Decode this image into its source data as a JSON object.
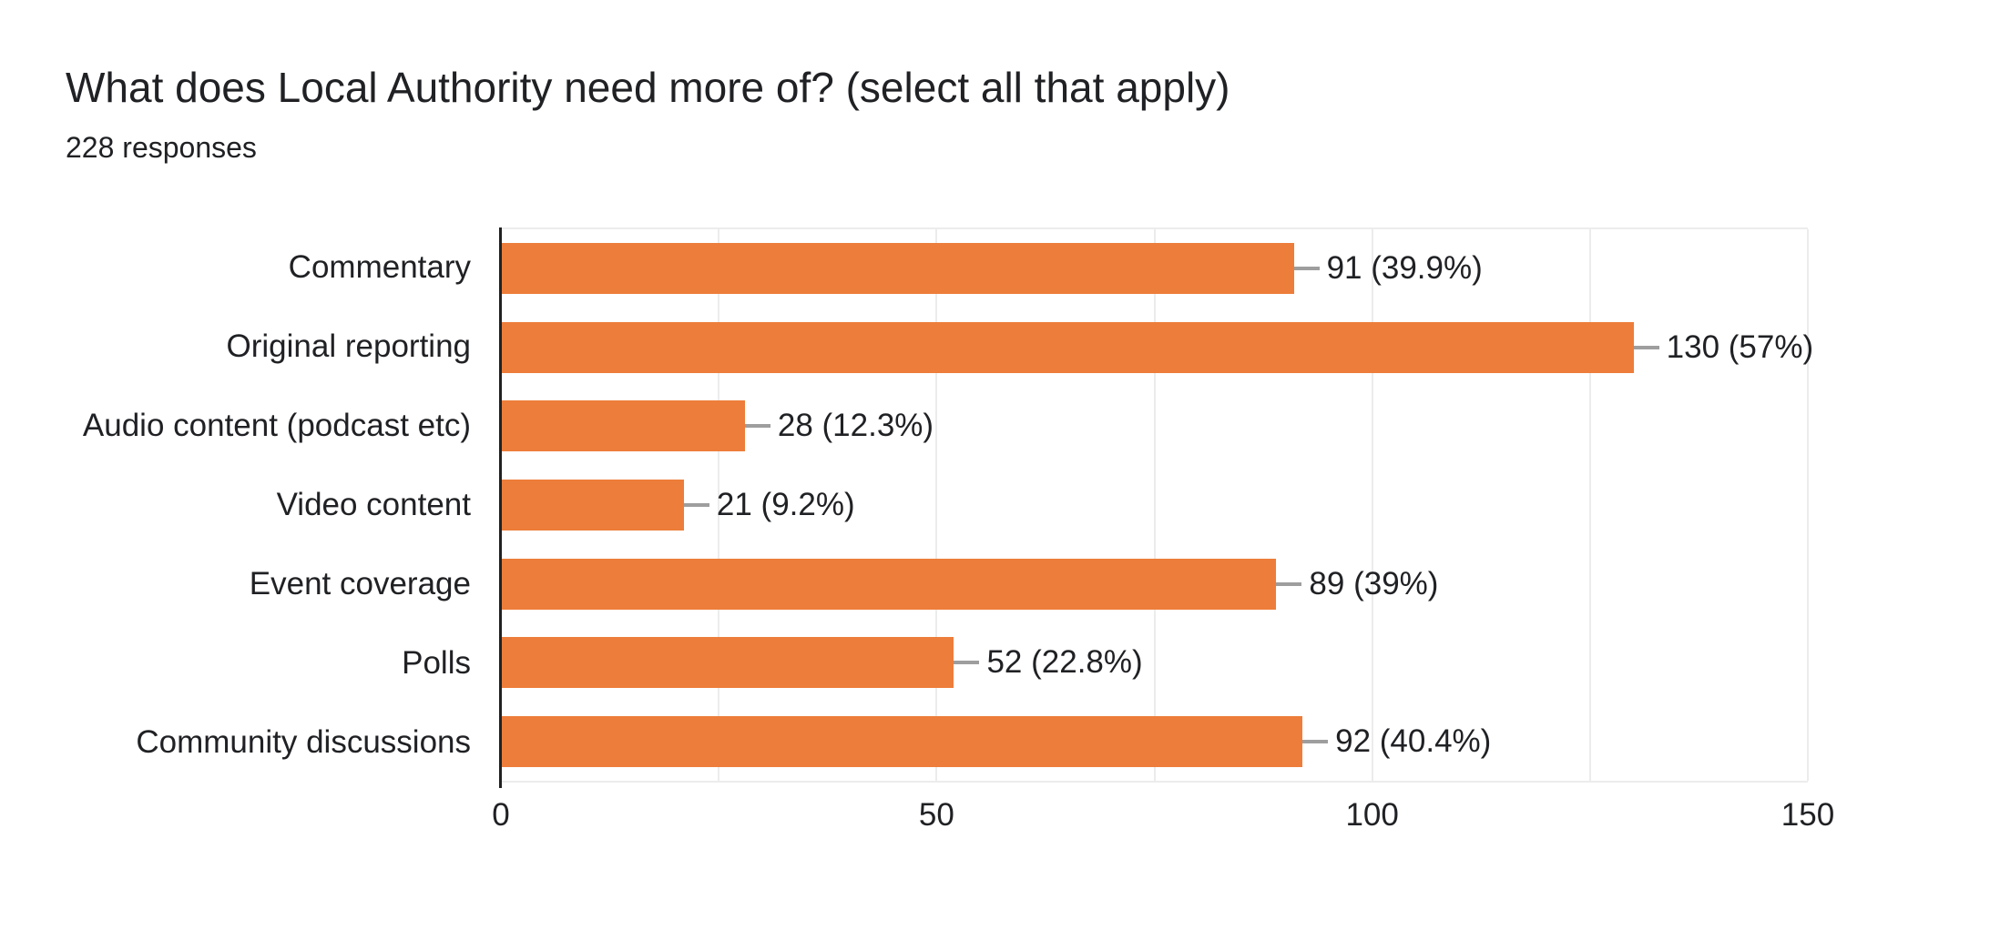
{
  "header": {
    "title": "What does Local Authority need more of? (select all that apply)",
    "responses": "228 responses"
  },
  "chart_data": {
    "type": "bar",
    "orientation": "horizontal",
    "title": "What does Local Authority need more of? (select all that apply)",
    "subtitle": "228 responses",
    "total_responses": 228,
    "categories": [
      "Commentary",
      "Original reporting",
      "Audio content (podcast etc)",
      "Video content",
      "Event coverage",
      "Polls",
      "Community discussions"
    ],
    "values": [
      91,
      130,
      28,
      21,
      89,
      52,
      92
    ],
    "percents": [
      39.9,
      57,
      12.3,
      9.2,
      39,
      22.8,
      40.4
    ],
    "data_labels": [
      "91 (39.9%)",
      "130 (57%)",
      "28 (12.3%)",
      "21 (9.2%)",
      "89 (39%)",
      "52 (22.8%)",
      "92 (40.4%)"
    ],
    "xlabel": "",
    "ylabel": "",
    "xlim": [
      0,
      150
    ],
    "xticks": [
      0,
      50,
      100,
      150
    ],
    "gridline_step": 25,
    "grid_on": true,
    "legend": "none"
  },
  "colors": {
    "bar": "#ED7D3A",
    "grid": "#ECECEC",
    "axis": "#212121",
    "callout": "#9E9E9E",
    "text": "#202124",
    "background": "#FFFFFF"
  }
}
